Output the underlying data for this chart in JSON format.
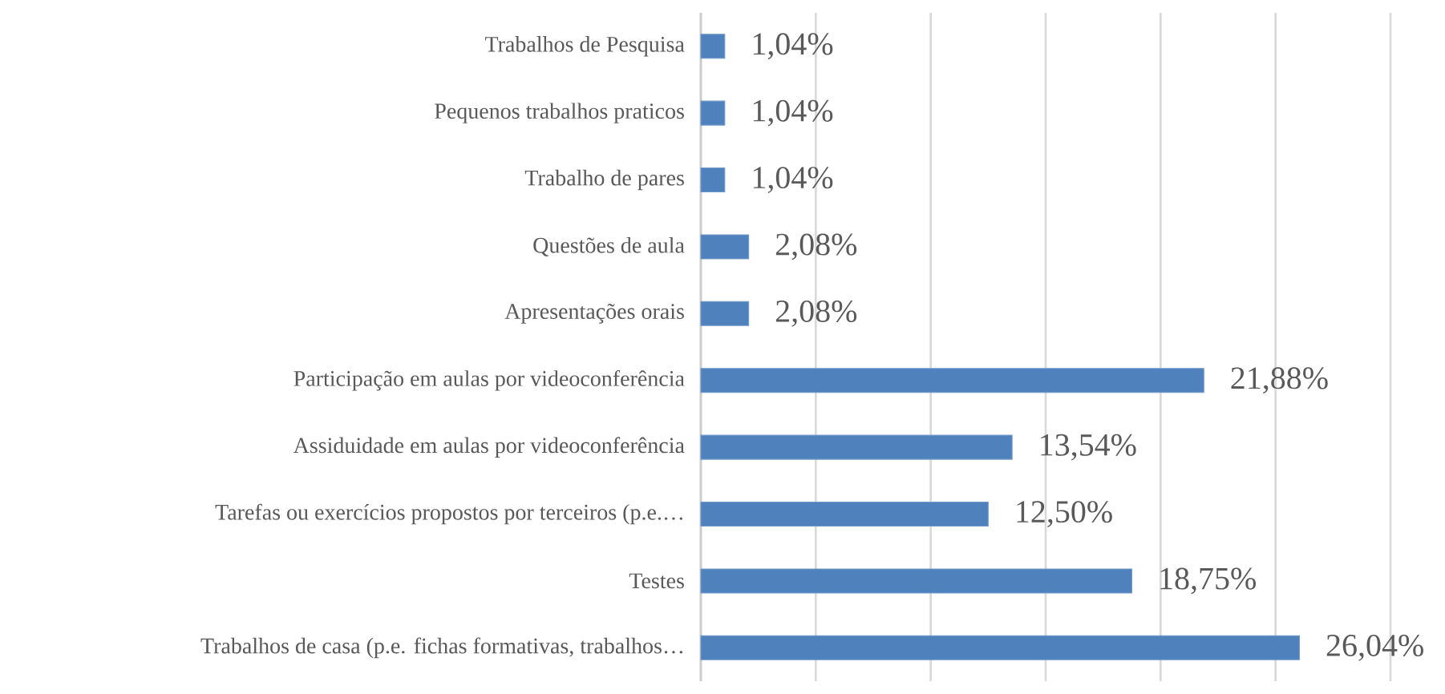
{
  "chart_data": {
    "type": "bar",
    "orientation": "horizontal",
    "categories": [
      "Trabalhos de Pesquisa",
      "Pequenos trabalhos praticos",
      "Trabalho de pares",
      "Questões de aula",
      "Apresentações orais",
      "Participação em aulas por videoconferência",
      "Assiduidade em aulas por videoconferência",
      "Tarefas ou exercícios propostos por terceiros (p.e.…",
      "Testes",
      "Trabalhos de casa (p.e. fichas formativas, trabalhos…"
    ],
    "values": [
      1.04,
      1.04,
      1.04,
      2.08,
      2.08,
      21.88,
      13.54,
      12.5,
      18.75,
      26.04
    ],
    "value_labels": [
      "1,04%",
      "1,04%",
      "1,04%",
      "2,08%",
      "2,08%",
      "21,88%",
      "13,54%",
      "12,50%",
      "18,75%",
      "26,04%"
    ],
    "color": "#4f81bd",
    "xlim": [
      0,
      30
    ],
    "xticks": [
      {
        "value": 0,
        "label": null
      },
      {
        "value": 5,
        "label": null
      },
      {
        "value": 10,
        "label": null
      },
      {
        "value": 15,
        "label": null
      },
      {
        "value": 20,
        "label": null
      },
      {
        "value": 25,
        "label": null
      },
      {
        "value": 30,
        "label": null
      }
    ],
    "grid": "x",
    "tick_labels": "y"
  }
}
